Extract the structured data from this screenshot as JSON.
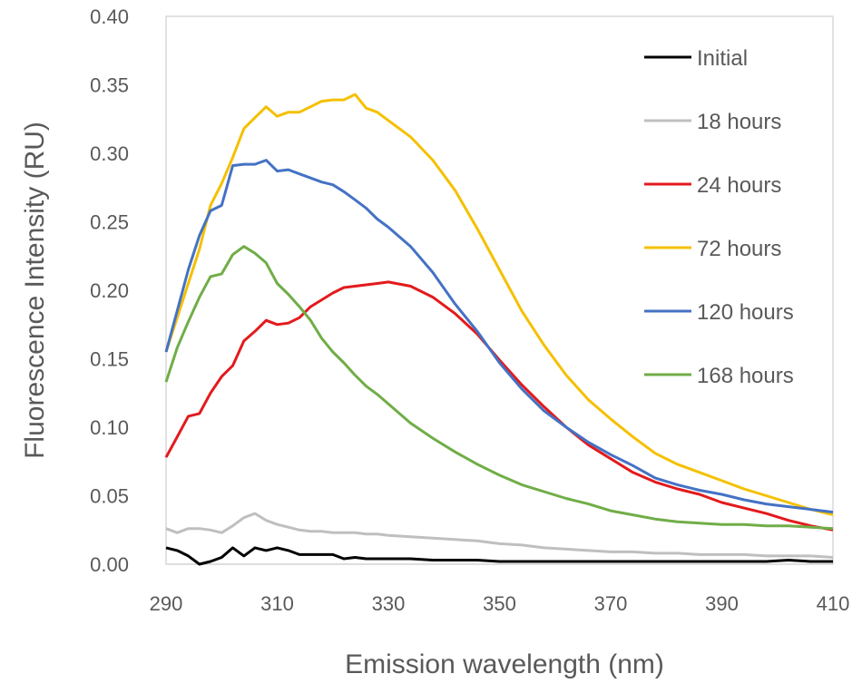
{
  "chart_data": {
    "type": "line",
    "title": "",
    "xlabel": "Emission wavelength (nm)",
    "ylabel": "Fluorescence Intensity (RU)",
    "xlim": [
      290,
      410
    ],
    "ylim": [
      0,
      0.4
    ],
    "xticks": [
      "290",
      "310",
      "330",
      "350",
      "370",
      "390",
      "410"
    ],
    "yticks": [
      "0.00",
      "0.05",
      "0.10",
      "0.15",
      "0.20",
      "0.25",
      "0.30",
      "0.35",
      "0.40"
    ],
    "legend_position": "top-right",
    "grid": false,
    "x": [
      290,
      292,
      294,
      296,
      298,
      300,
      302,
      304,
      306,
      308,
      310,
      312,
      314,
      316,
      318,
      320,
      322,
      324,
      326,
      328,
      330,
      334,
      338,
      342,
      346,
      350,
      354,
      358,
      362,
      366,
      370,
      374,
      378,
      382,
      386,
      390,
      394,
      398,
      402,
      406,
      410
    ],
    "series": [
      {
        "name": "Initial",
        "color": "#000000",
        "values": [
          0.012,
          0.01,
          0.006,
          0.0,
          0.002,
          0.005,
          0.012,
          0.006,
          0.012,
          0.01,
          0.012,
          0.01,
          0.007,
          0.007,
          0.007,
          0.007,
          0.004,
          0.005,
          0.004,
          0.004,
          0.004,
          0.004,
          0.003,
          0.003,
          0.003,
          0.002,
          0.002,
          0.002,
          0.002,
          0.002,
          0.002,
          0.002,
          0.002,
          0.002,
          0.002,
          0.002,
          0.002,
          0.002,
          0.003,
          0.002,
          0.002
        ]
      },
      {
        "name": "18 hours",
        "color": "#bfbfbf",
        "values": [
          0.026,
          0.023,
          0.026,
          0.026,
          0.025,
          0.023,
          0.028,
          0.034,
          0.037,
          0.032,
          0.029,
          0.027,
          0.025,
          0.024,
          0.024,
          0.023,
          0.023,
          0.023,
          0.022,
          0.022,
          0.021,
          0.02,
          0.019,
          0.018,
          0.017,
          0.015,
          0.014,
          0.012,
          0.011,
          0.01,
          0.009,
          0.009,
          0.008,
          0.008,
          0.007,
          0.007,
          0.007,
          0.006,
          0.006,
          0.006,
          0.005
        ]
      },
      {
        "name": "24 hours",
        "color": "#e31a1c",
        "values": [
          0.078,
          0.093,
          0.108,
          0.11,
          0.125,
          0.137,
          0.145,
          0.163,
          0.17,
          0.178,
          0.175,
          0.176,
          0.18,
          0.188,
          0.193,
          0.198,
          0.202,
          0.203,
          0.204,
          0.205,
          0.206,
          0.203,
          0.195,
          0.183,
          0.168,
          0.149,
          0.131,
          0.115,
          0.1,
          0.087,
          0.077,
          0.067,
          0.06,
          0.055,
          0.051,
          0.045,
          0.041,
          0.037,
          0.032,
          0.028,
          0.025
        ]
      },
      {
        "name": "72 hours",
        "color": "#f5c000",
        "values": [
          0.155,
          0.18,
          0.205,
          0.23,
          0.262,
          0.278,
          0.297,
          0.318,
          0.326,
          0.334,
          0.327,
          0.33,
          0.33,
          0.334,
          0.338,
          0.339,
          0.339,
          0.343,
          0.333,
          0.33,
          0.324,
          0.312,
          0.295,
          0.273,
          0.245,
          0.215,
          0.185,
          0.16,
          0.138,
          0.12,
          0.106,
          0.093,
          0.081,
          0.073,
          0.067,
          0.061,
          0.055,
          0.05,
          0.045,
          0.04,
          0.036
        ]
      },
      {
        "name": "120 hours",
        "color": "#4472c4",
        "values": [
          0.155,
          0.185,
          0.215,
          0.24,
          0.258,
          0.262,
          0.291,
          0.292,
          0.292,
          0.295,
          0.287,
          0.288,
          0.285,
          0.282,
          0.279,
          0.277,
          0.272,
          0.266,
          0.26,
          0.252,
          0.246,
          0.232,
          0.213,
          0.19,
          0.17,
          0.147,
          0.128,
          0.112,
          0.1,
          0.089,
          0.08,
          0.072,
          0.063,
          0.058,
          0.054,
          0.051,
          0.047,
          0.044,
          0.042,
          0.04,
          0.038
        ]
      },
      {
        "name": "168 hours",
        "color": "#70ad47",
        "values": [
          0.133,
          0.158,
          0.177,
          0.195,
          0.21,
          0.212,
          0.226,
          0.232,
          0.227,
          0.22,
          0.205,
          0.197,
          0.188,
          0.178,
          0.165,
          0.155,
          0.147,
          0.138,
          0.13,
          0.124,
          0.117,
          0.103,
          0.092,
          0.082,
          0.073,
          0.065,
          0.058,
          0.053,
          0.048,
          0.044,
          0.039,
          0.036,
          0.033,
          0.031,
          0.03,
          0.029,
          0.029,
          0.028,
          0.028,
          0.027,
          0.026
        ]
      }
    ]
  }
}
